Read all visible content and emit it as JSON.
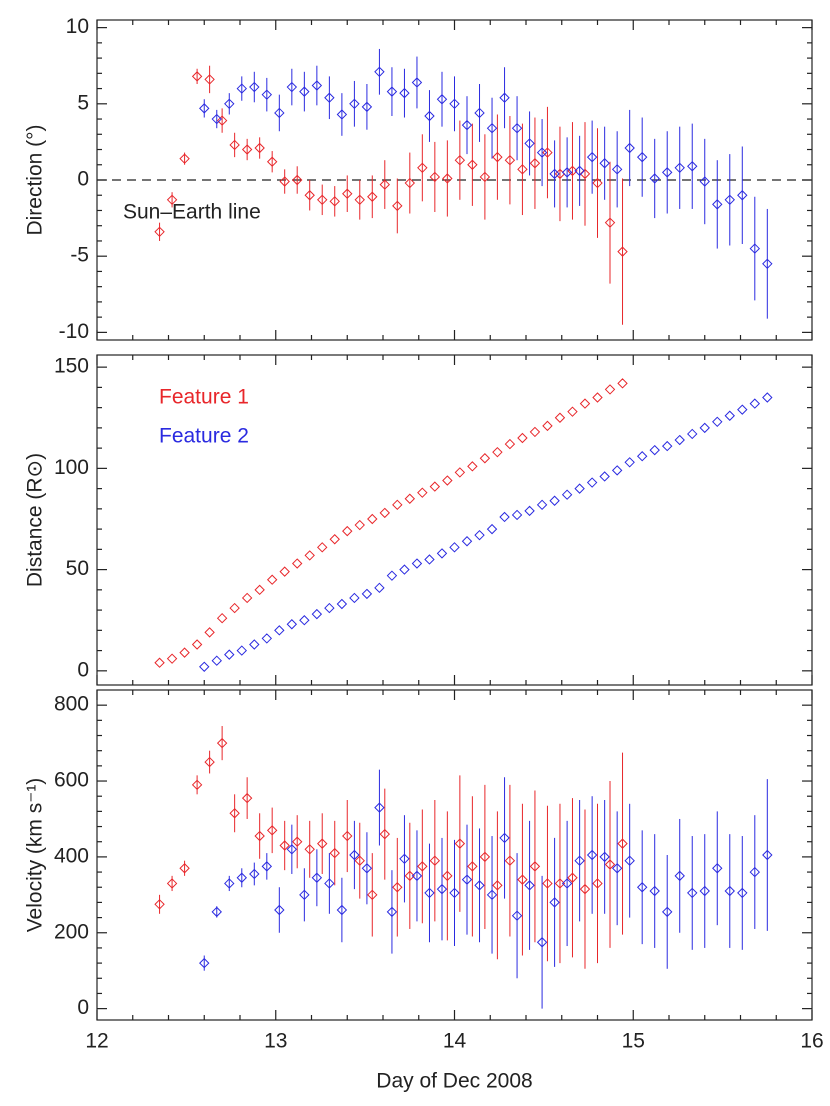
{
  "chart_data": [
    {
      "type": "scatter",
      "ylabel": "Direction (°)",
      "xlim": [
        12,
        16
      ],
      "xticks": [
        12,
        13,
        14,
        15,
        16
      ],
      "ylim": [
        -10.5,
        10.5
      ],
      "yticks": [
        -10,
        -5,
        0,
        5,
        10
      ],
      "reference_line": 0,
      "annotation": "Sun–Earth line",
      "series": [
        {
          "name": "Feature 1",
          "color": "#e8262a",
          "x": [
            12.35,
            12.42,
            12.49,
            12.56,
            12.63,
            12.7,
            12.77,
            12.84,
            12.91,
            12.98,
            13.05,
            13.12,
            13.19,
            13.26,
            13.33,
            13.4,
            13.47,
            13.54,
            13.61,
            13.68,
            13.75,
            13.82,
            13.89,
            13.96,
            14.03,
            14.1,
            14.17,
            14.24,
            14.31,
            14.38,
            14.45,
            14.52,
            14.59,
            14.66,
            14.73,
            14.8,
            14.87,
            14.94
          ],
          "values": [
            -3.4,
            -1.3,
            1.4,
            6.8,
            6.6,
            3.9,
            2.3,
            2.0,
            2.1,
            1.2,
            -0.1,
            0,
            -1.0,
            -1.3,
            -1.4,
            -0.9,
            -1.3,
            -1.1,
            -0.3,
            -1.7,
            -0.2,
            0.8,
            0.2,
            0.1,
            1.3,
            1.0,
            0.2,
            1.5,
            1.3,
            0.7,
            1.1,
            1.8,
            0.4,
            0.6,
            0.4,
            -0.2,
            -2.8,
            -4.7
          ],
          "errors": [
            0.6,
            0.5,
            0.4,
            0.5,
            0.9,
            0.8,
            0.8,
            0.7,
            0.7,
            0.7,
            0.8,
            0.9,
            1,
            1,
            1,
            1.2,
            1.3,
            1.4,
            1.6,
            1.8,
            2,
            2.2,
            2.3,
            2.5,
            2.6,
            2.7,
            2.8,
            2.8,
            2.9,
            3,
            3,
            3,
            3.1,
            3.2,
            3.4,
            3.6,
            4,
            4.8
          ]
        },
        {
          "name": "Feature 2",
          "color": "#2a2ae0",
          "x": [
            12.6,
            12.67,
            12.74,
            12.81,
            12.88,
            12.95,
            13.02,
            13.09,
            13.16,
            13.23,
            13.3,
            13.37,
            13.44,
            13.51,
            13.58,
            13.65,
            13.72,
            13.79,
            13.86,
            13.93,
            14.0,
            14.07,
            14.14,
            14.21,
            14.28,
            14.35,
            14.42,
            14.49,
            14.56,
            14.63,
            14.7,
            14.77,
            14.84,
            14.91,
            14.98,
            15.05,
            15.12,
            15.19,
            15.26,
            15.33,
            15.4,
            15.47,
            15.54,
            15.61,
            15.68,
            15.75
          ],
          "values": [
            4.7,
            4.0,
            5.0,
            6.0,
            6.1,
            5.6,
            4.4,
            6.1,
            5.8,
            6.2,
            5.4,
            4.3,
            5.0,
            4.8,
            7.1,
            5.8,
            5.7,
            6.4,
            4.2,
            5.3,
            5.0,
            3.6,
            4.4,
            3.4,
            5.4,
            3.4,
            2.4,
            1.8,
            0.4,
            0.5,
            0.6,
            1.5,
            1.1,
            0.7,
            2.1,
            1.5,
            0.1,
            0.5,
            0.8,
            0.9,
            -0.1,
            -1.6,
            -1.3,
            -1.0,
            -4.5,
            -5.5
          ],
          "errors": [
            0.6,
            0.6,
            0.7,
            0.8,
            1,
            1.1,
            1.2,
            1.2,
            1.3,
            1.3,
            1.4,
            1.4,
            1.5,
            1.5,
            1.5,
            1.6,
            1.6,
            1.7,
            1.7,
            1.8,
            1.8,
            1.9,
            1.9,
            2,
            2,
            2.1,
            2.1,
            2.2,
            2.2,
            2.3,
            2.3,
            2.4,
            2.4,
            2.5,
            2.5,
            2.6,
            2.6,
            2.7,
            2.7,
            2.8,
            2.8,
            2.9,
            3,
            3.2,
            3.4,
            3.6
          ]
        }
      ]
    },
    {
      "type": "scatter",
      "ylabel": "Distance (R⊙)",
      "xlim": [
        12,
        16
      ],
      "xticks": [
        12,
        13,
        14,
        15,
        16
      ],
      "ylim": [
        -7,
        156
      ],
      "yticks": [
        0,
        50,
        100,
        150
      ],
      "legend": "upper left",
      "series": [
        {
          "name": "Feature 1",
          "color": "#e8262a",
          "x": [
            12.35,
            12.42,
            12.49,
            12.56,
            12.63,
            12.7,
            12.77,
            12.84,
            12.91,
            12.98,
            13.05,
            13.12,
            13.19,
            13.26,
            13.33,
            13.4,
            13.47,
            13.54,
            13.61,
            13.68,
            13.75,
            13.82,
            13.89,
            13.96,
            14.03,
            14.1,
            14.17,
            14.24,
            14.31,
            14.38,
            14.45,
            14.52,
            14.59,
            14.66,
            14.73,
            14.8,
            14.87,
            14.94
          ],
          "values": [
            4,
            6,
            9,
            13,
            19,
            26,
            31,
            36,
            40,
            45,
            49,
            53,
            57,
            61,
            65,
            69,
            72,
            75,
            78,
            82,
            85,
            88,
            91,
            94,
            98,
            101,
            105,
            108,
            112,
            115,
            118,
            121,
            125,
            128,
            132,
            135,
            139,
            142
          ]
        },
        {
          "name": "Feature 2",
          "color": "#2a2ae0",
          "x": [
            12.6,
            12.67,
            12.74,
            12.81,
            12.88,
            12.95,
            13.02,
            13.09,
            13.16,
            13.23,
            13.3,
            13.37,
            13.44,
            13.51,
            13.58,
            13.65,
            13.72,
            13.79,
            13.86,
            13.93,
            14.0,
            14.07,
            14.14,
            14.21,
            14.28,
            14.35,
            14.42,
            14.49,
            14.56,
            14.63,
            14.7,
            14.77,
            14.84,
            14.91,
            14.98,
            15.05,
            15.12,
            15.19,
            15.26,
            15.33,
            15.4,
            15.47,
            15.54,
            15.61,
            15.68,
            15.75
          ],
          "values": [
            2,
            5,
            8,
            10,
            13,
            16,
            20,
            23,
            25,
            28,
            31,
            33,
            36,
            38,
            41,
            47,
            50,
            53,
            55,
            58,
            61,
            64,
            67,
            70,
            76,
            77,
            79,
            82,
            84,
            87,
            90,
            93,
            96,
            99,
            103,
            106,
            109,
            111,
            114,
            117,
            120,
            123,
            126,
            129,
            132,
            135
          ]
        }
      ]
    },
    {
      "type": "scatter",
      "ylabel": "Velocity (km s⁻¹)",
      "xlabel": "Day of Dec 2008",
      "xlim": [
        12,
        16
      ],
      "xticks": [
        12,
        13,
        14,
        15,
        16
      ],
      "ylim": [
        -30,
        840
      ],
      "yticks": [
        0,
        200,
        400,
        600,
        800
      ],
      "series": [
        {
          "name": "Feature 1",
          "color": "#e8262a",
          "x": [
            12.35,
            12.42,
            12.49,
            12.56,
            12.63,
            12.7,
            12.77,
            12.84,
            12.91,
            12.98,
            13.05,
            13.12,
            13.19,
            13.26,
            13.33,
            13.4,
            13.47,
            13.54,
            13.61,
            13.68,
            13.75,
            13.82,
            13.89,
            13.96,
            14.03,
            14.1,
            14.17,
            14.24,
            14.31,
            14.38,
            14.45,
            14.52,
            14.59,
            14.66,
            14.73,
            14.8,
            14.87,
            14.94
          ],
          "values": [
            275,
            330,
            370,
            590,
            650,
            700,
            515,
            555,
            455,
            470,
            430,
            440,
            420,
            435,
            410,
            455,
            390,
            300,
            460,
            320,
            350,
            375,
            390,
            350,
            435,
            375,
            400,
            325,
            390,
            340,
            375,
            330,
            330,
            345,
            315,
            330,
            380,
            435
          ],
          "errors": [
            25,
            20,
            20,
            25,
            30,
            45,
            50,
            55,
            60,
            60,
            65,
            70,
            75,
            80,
            85,
            95,
            100,
            110,
            120,
            130,
            140,
            150,
            160,
            170,
            180,
            185,
            190,
            195,
            200,
            200,
            200,
            205,
            210,
            210,
            210,
            210,
            220,
            240
          ]
        },
        {
          "name": "Feature 2",
          "color": "#2a2ae0",
          "x": [
            12.6,
            12.67,
            12.74,
            12.81,
            12.88,
            12.95,
            13.02,
            13.09,
            13.16,
            13.23,
            13.3,
            13.37,
            13.44,
            13.51,
            13.58,
            13.65,
            13.72,
            13.79,
            13.86,
            13.93,
            14.0,
            14.07,
            14.14,
            14.21,
            14.28,
            14.35,
            14.42,
            14.49,
            14.56,
            14.63,
            14.7,
            14.77,
            14.84,
            14.91,
            14.98,
            15.05,
            15.12,
            15.19,
            15.26,
            15.33,
            15.4,
            15.47,
            15.54,
            15.61,
            15.68,
            15.75
          ],
          "values": [
            120,
            255,
            330,
            345,
            355,
            375,
            260,
            420,
            300,
            345,
            330,
            260,
            405,
            370,
            530,
            255,
            395,
            350,
            305,
            315,
            305,
            340,
            325,
            300,
            450,
            245,
            325,
            175,
            280,
            330,
            390,
            405,
            400,
            370,
            390,
            320,
            310,
            255,
            350,
            305,
            310,
            370,
            310,
            305,
            360,
            405
          ],
          "errors": [
            20,
            15,
            20,
            25,
            30,
            35,
            60,
            65,
            70,
            75,
            80,
            85,
            90,
            95,
            100,
            110,
            115,
            120,
            130,
            135,
            140,
            145,
            150,
            155,
            160,
            165,
            170,
            175,
            170,
            165,
            160,
            155,
            150,
            150,
            150,
            150,
            150,
            150,
            150,
            150,
            150,
            150,
            150,
            150,
            150,
            200
          ]
        }
      ]
    }
  ]
}
